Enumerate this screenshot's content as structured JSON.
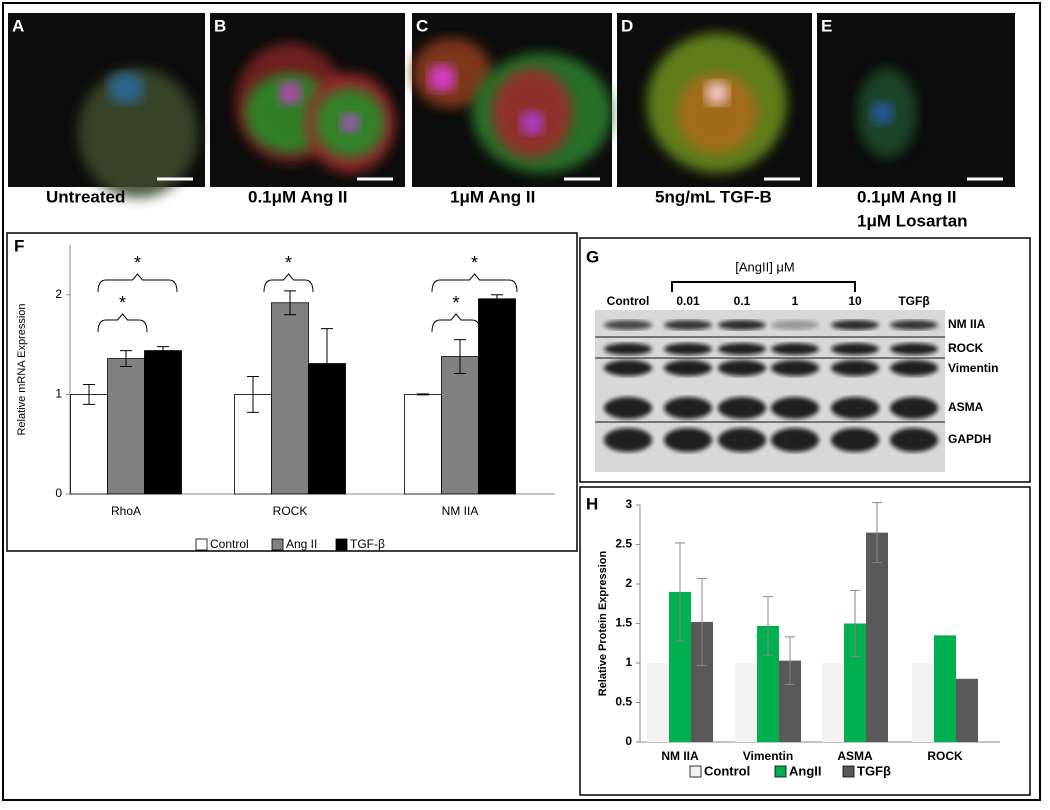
{
  "panels": [
    {
      "label": "A",
      "caption_lines": [
        "Untreated"
      ]
    },
    {
      "label": "B",
      "caption_lines": [
        "0.1μM Ang II"
      ]
    },
    {
      "label": "C",
      "caption_lines": [
        "1μM Ang II"
      ]
    },
    {
      "label": "D",
      "caption_lines": [
        "5ng/mL TGF-B"
      ]
    },
    {
      "label": "E",
      "caption_lines": [
        "0.1μM Ang II",
        "1μM Losartan"
      ]
    }
  ],
  "blot": {
    "label": "G",
    "dose_label": "[AngII] μM",
    "lanes": [
      "Control",
      "0.01",
      "0.1",
      "1",
      "10",
      "TGFβ"
    ],
    "bands": [
      "NM IIA",
      "ROCK",
      "Vimentin",
      "ASMA",
      "GAPDH"
    ]
  },
  "chart_data": [
    {
      "type": "bar",
      "panel_label": "F",
      "y_label": "Relative mRNA Expression",
      "categories": [
        "RhoA",
        "ROCK",
        "NM IIA"
      ],
      "series": [
        {
          "name": "Control",
          "color": "#ffffff",
          "values": [
            1,
            1,
            1
          ],
          "errors": [
            0.1,
            0.18,
            0.005
          ]
        },
        {
          "name": "Ang II",
          "color": "#808080",
          "values": [
            1.36,
            1.92,
            1.38
          ],
          "errors": [
            0.08,
            0.12,
            0.17
          ]
        },
        {
          "name": "TGF-β",
          "color": "#000000",
          "values": [
            1.44,
            1.31,
            1.96
          ],
          "errors": [
            0.04,
            0.35,
            0.04
          ]
        }
      ],
      "ylim": [
        0,
        2.5
      ],
      "yticks": [
        0,
        1,
        2
      ],
      "annotations": [
        "*",
        "*",
        "*",
        "*",
        "*"
      ]
    },
    {
      "type": "bar",
      "panel_label": "H",
      "y_label": "Relative Protein Expression",
      "categories": [
        "NM IIA",
        "Vimentin",
        "ASMA",
        "ROCK"
      ],
      "series": [
        {
          "name": "Control",
          "color": "#f2f2f2",
          "values": [
            1,
            1,
            1,
            1
          ],
          "errors": [
            null,
            null,
            null,
            null
          ]
        },
        {
          "name": "AngII",
          "color": "#00b050",
          "values": [
            1.9,
            1.47,
            1.5,
            1.35
          ],
          "errors": [
            0.62,
            0.37,
            0.42,
            null
          ]
        },
        {
          "name": "TGFβ",
          "color": "#595959",
          "values": [
            1.52,
            1.03,
            2.65,
            0.8
          ],
          "errors": [
            0.55,
            0.3,
            0.38,
            null
          ]
        }
      ],
      "ylim": [
        0,
        3
      ],
      "yticks": [
        0,
        0.5,
        1,
        1.5,
        2,
        2.5,
        3
      ]
    }
  ]
}
